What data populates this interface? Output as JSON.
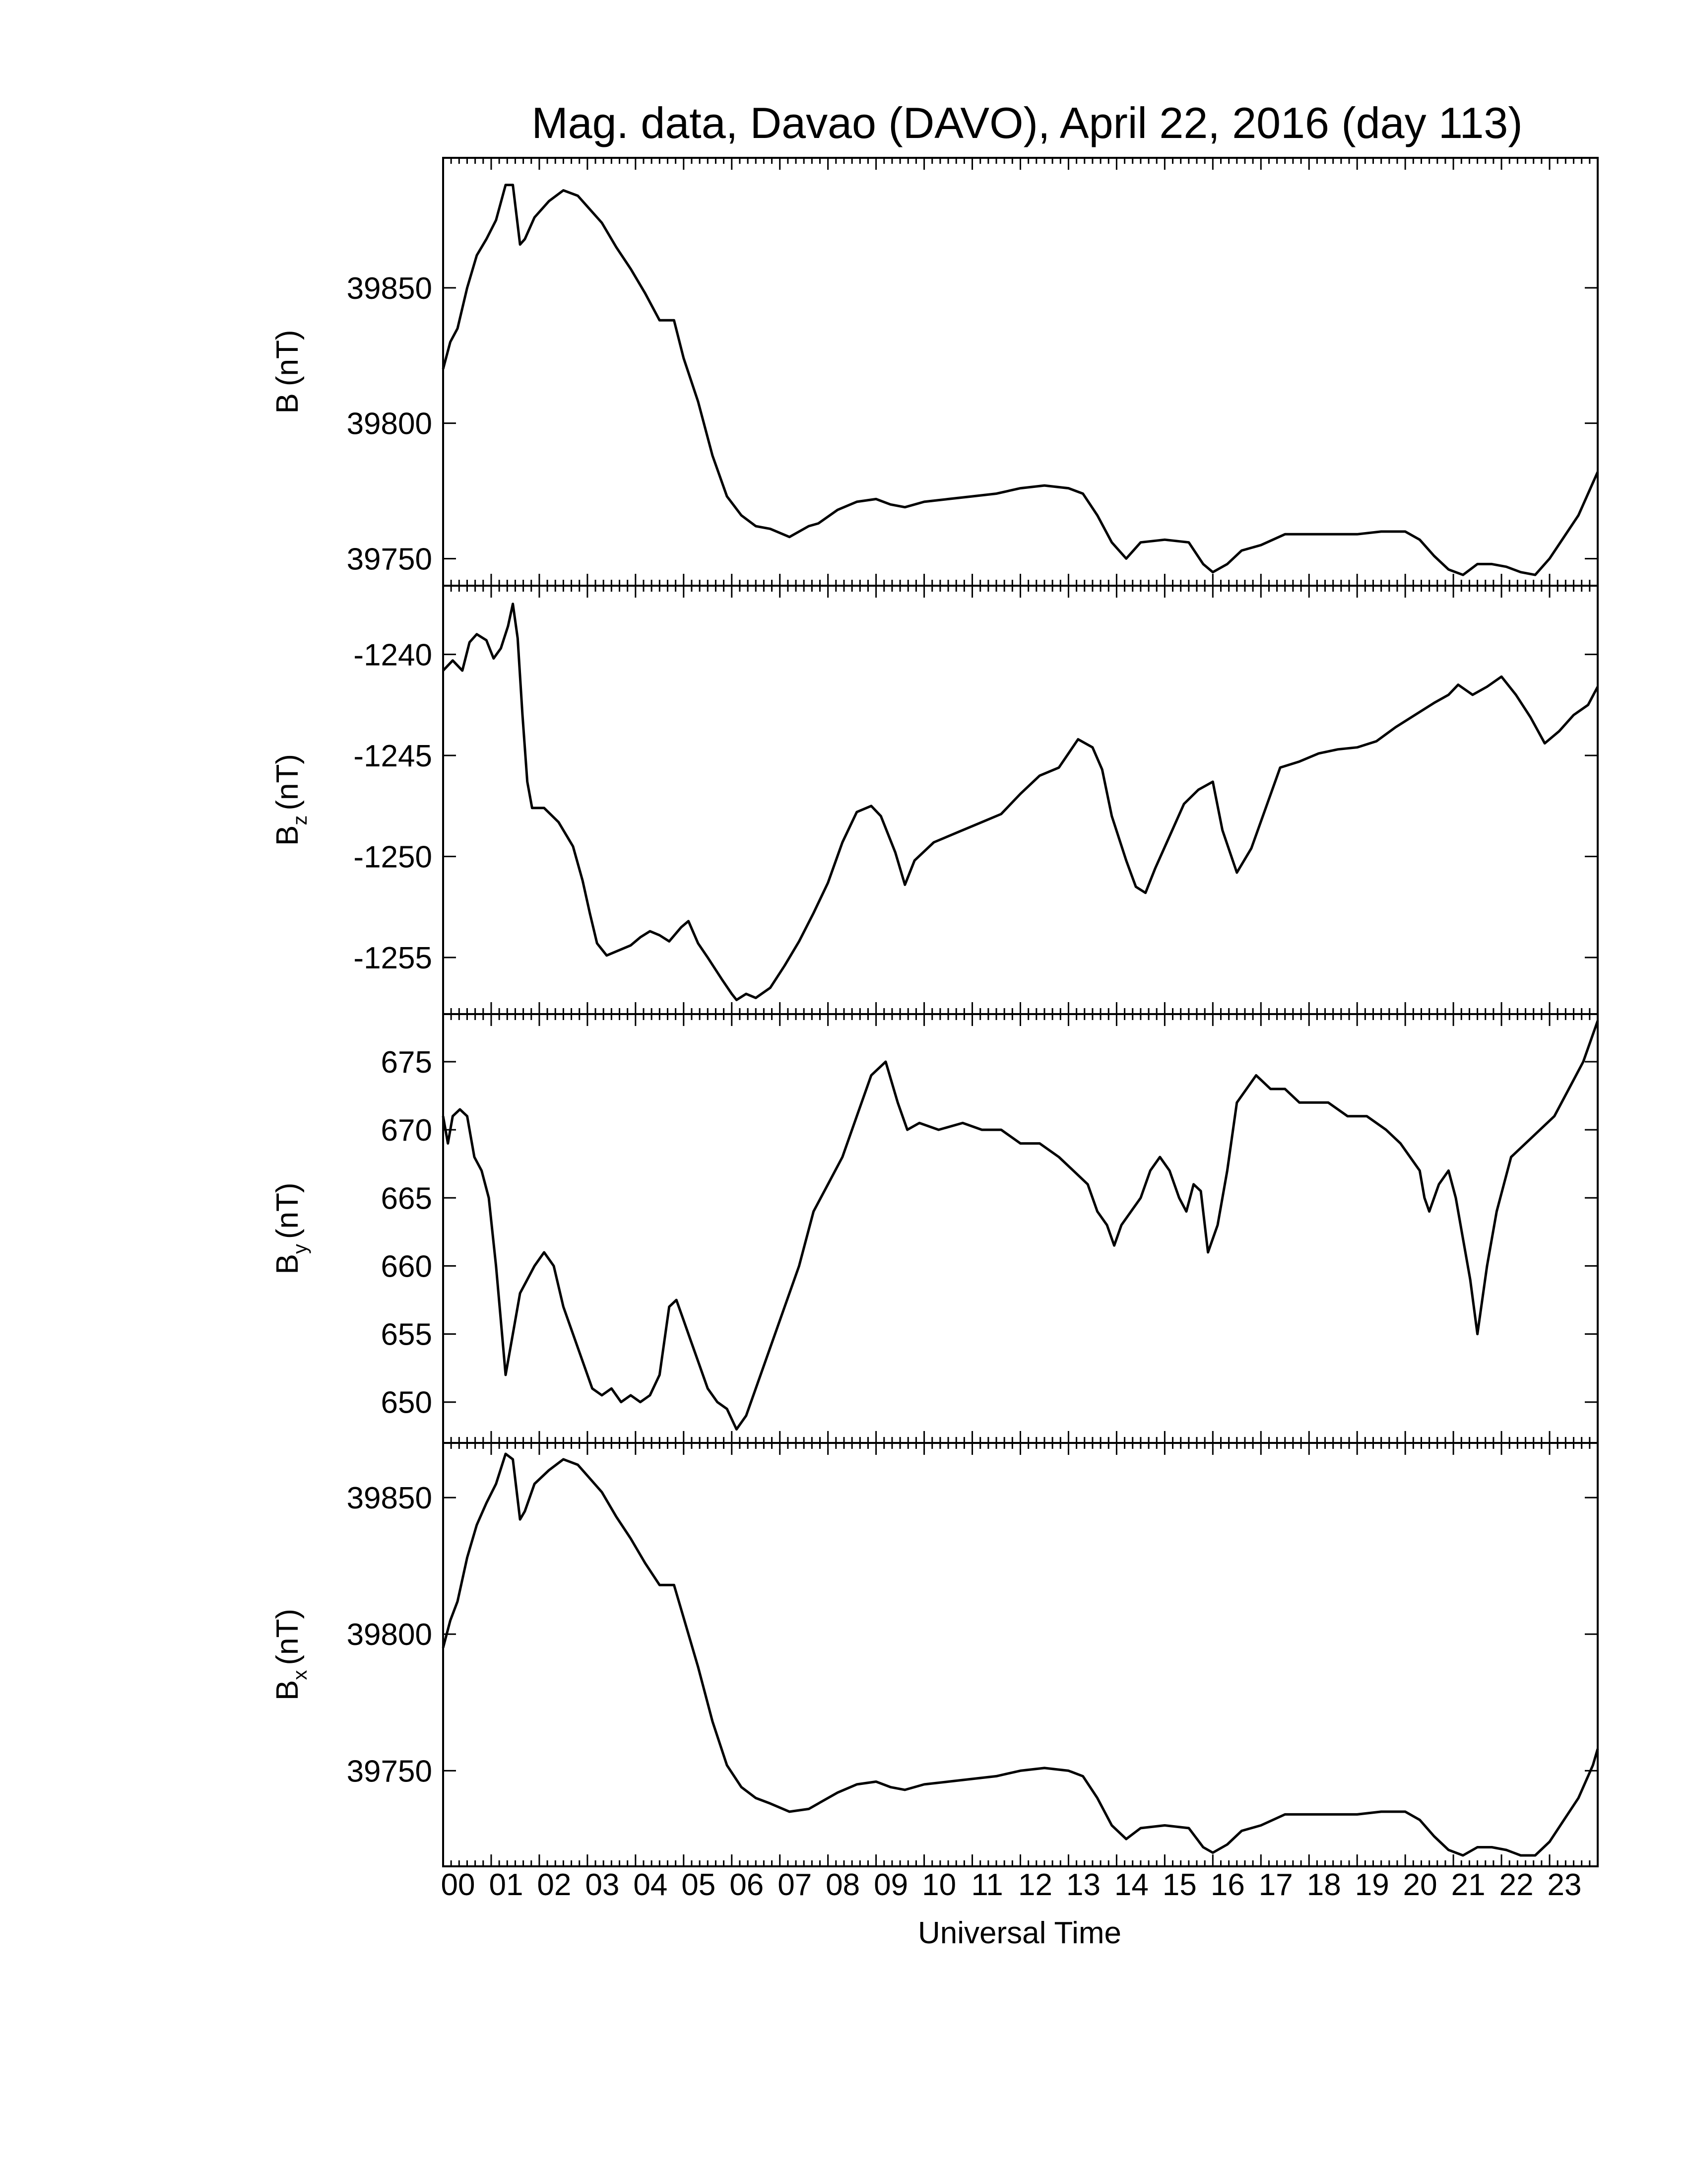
{
  "chart_data": {
    "type": "line",
    "title": "Mag. data, Davao (DAVO), April 22, 2016 (day 113)",
    "xlabel": "Universal Time",
    "x_ticks": [
      "00",
      "01",
      "02",
      "03",
      "04",
      "05",
      "06",
      "07",
      "08",
      "09",
      "10",
      "11",
      "12",
      "13",
      "14",
      "15",
      "16",
      "17",
      "18",
      "19",
      "20",
      "21",
      "22",
      "23"
    ],
    "xlim": [
      0,
      24
    ],
    "panels": [
      {
        "ylabel_main": "B",
        "ylabel_sub": "",
        "ylabel_unit": "(nT)",
        "ylim": [
          39740,
          39898
        ],
        "yticks": [
          39750,
          39800,
          39850
        ],
        "series": [
          {
            "x": [
              0,
              0.15,
              0.3,
              0.5,
              0.7,
              0.9,
              1.1,
              1.3,
              1.45,
              1.6,
              1.7,
              1.9,
              2.2,
              2.5,
              2.8,
              3.0,
              3.3,
              3.6,
              3.9,
              4.2,
              4.5,
              4.8,
              5.0,
              5.3,
              5.6,
              5.9,
              6.2,
              6.5,
              6.8,
              7.2,
              7.6,
              7.8,
              8.2,
              8.6,
              9.0,
              9.3,
              9.6,
              10.0,
              10.5,
              11.0,
              11.5,
              12.0,
              12.5,
              13.0,
              13.3,
              13.6,
              13.9,
              14.2,
              14.5,
              15.0,
              15.5,
              15.8,
              16.0,
              16.3,
              16.6,
              17.0,
              17.5,
              18.0,
              18.5,
              19.0,
              19.5,
              20.0,
              20.3,
              20.6,
              20.9,
              21.2,
              21.5,
              21.8,
              22.1,
              22.4,
              22.7,
              23.0,
              23.3,
              23.6,
              23.9,
              24.0
            ],
            "y": [
              39820,
              39830,
              39835,
              39850,
              39862,
              39868,
              39875,
              39888,
              39888,
              39866,
              39868,
              39876,
              39882,
              39886,
              39884,
              39880,
              39874,
              39865,
              39857,
              39848,
              39838,
              39838,
              39824,
              39808,
              39788,
              39773,
              39766,
              39762,
              39761,
              39758,
              39762,
              39763,
              39768,
              39771,
              39772,
              39770,
              39769,
              39771,
              39772,
              39773,
              39774,
              39776,
              39777,
              39776,
              39774,
              39766,
              39756,
              39750,
              39756,
              39757,
              39756,
              39748,
              39745,
              39748,
              39753,
              39755,
              39759,
              39759,
              39759,
              39759,
              39760,
              39760,
              39757,
              39751,
              39746,
              39744,
              39748,
              39748,
              39747,
              39745,
              39744,
              39750,
              39758,
              39766,
              39778,
              39782
            ]
          }
        ]
      },
      {
        "ylabel_main": "B",
        "ylabel_sub": "z",
        "ylabel_unit": "(nT)",
        "ylim": [
          -1257.8,
          -1236.6
        ],
        "yticks": [
          -1240,
          -1245,
          -1250,
          -1255
        ],
        "series": [
          {
            "x": [
              0,
              0.2,
              0.4,
              0.55,
              0.7,
              0.9,
              1.05,
              1.2,
              1.35,
              1.45,
              1.55,
              1.65,
              1.75,
              1.85,
              2.1,
              2.4,
              2.7,
              2.9,
              3.05,
              3.2,
              3.4,
              3.6,
              3.9,
              4.1,
              4.3,
              4.5,
              4.7,
              4.95,
              5.1,
              5.3,
              5.5,
              5.8,
              6.0,
              6.1,
              6.3,
              6.5,
              6.8,
              7.1,
              7.4,
              7.7,
              8.0,
              8.3,
              8.6,
              8.9,
              9.1,
              9.4,
              9.6,
              9.8,
              10.2,
              10.7,
              11.2,
              11.6,
              12.0,
              12.4,
              12.8,
              13.2,
              13.5,
              13.7,
              13.9,
              14.2,
              14.4,
              14.6,
              14.8,
              15.1,
              15.4,
              15.7,
              16.0,
              16.2,
              16.5,
              16.8,
              17.1,
              17.4,
              17.8,
              18.2,
              18.6,
              19.0,
              19.4,
              19.8,
              20.2,
              20.6,
              20.9,
              21.1,
              21.4,
              21.7,
              22.0,
              22.3,
              22.6,
              22.9,
              23.2,
              23.5,
              23.8,
              24.0
            ],
            "y": [
              -1240.8,
              -1240.3,
              -1240.8,
              -1239.4,
              -1239.0,
              -1239.3,
              -1240.2,
              -1239.7,
              -1238.6,
              -1237.5,
              -1239.2,
              -1243.0,
              -1246.3,
              -1247.6,
              -1247.6,
              -1248.3,
              -1249.5,
              -1251.2,
              -1252.8,
              -1254.3,
              -1254.9,
              -1254.7,
              -1254.4,
              -1254.0,
              -1253.7,
              -1253.9,
              -1254.2,
              -1253.5,
              -1253.2,
              -1254.3,
              -1255.0,
              -1256.1,
              -1256.8,
              -1257.1,
              -1256.8,
              -1257.0,
              -1256.5,
              -1255.4,
              -1254.2,
              -1252.8,
              -1251.3,
              -1249.3,
              -1247.8,
              -1247.5,
              -1248.0,
              -1249.8,
              -1251.4,
              -1250.2,
              -1249.3,
              -1248.8,
              -1248.3,
              -1247.9,
              -1246.9,
              -1246.0,
              -1245.6,
              -1244.2,
              -1244.6,
              -1245.7,
              -1248.0,
              -1250.2,
              -1251.5,
              -1251.8,
              -1250.6,
              -1249.0,
              -1247.4,
              -1246.7,
              -1246.3,
              -1248.7,
              -1250.8,
              -1249.6,
              -1247.6,
              -1245.6,
              -1245.3,
              -1244.9,
              -1244.7,
              -1244.6,
              -1244.3,
              -1243.6,
              -1243.0,
              -1242.4,
              -1242.0,
              -1241.5,
              -1242.0,
              -1241.6,
              -1241.1,
              -1242.0,
              -1243.1,
              -1244.4,
              -1243.8,
              -1243.0,
              -1242.5,
              -1241.6
            ]
          }
        ]
      },
      {
        "ylabel_main": "B",
        "ylabel_sub": "y",
        "ylabel_unit": "(nT)",
        "ylim": [
          647,
          678.5
        ],
        "yticks": [
          650,
          655,
          660,
          665,
          670,
          675
        ],
        "series": [
          {
            "x": [
              0,
              0.1,
              0.2,
              0.35,
              0.5,
              0.65,
              0.8,
              0.95,
              1.1,
              1.2,
              1.3,
              1.45,
              1.6,
              1.75,
              1.9,
              2.1,
              2.3,
              2.5,
              2.7,
              2.9,
              3.1,
              3.3,
              3.5,
              3.7,
              3.9,
              4.1,
              4.3,
              4.5,
              4.7,
              4.85,
              5.0,
              5.15,
              5.3,
              5.5,
              5.7,
              5.9,
              6.1,
              6.3,
              6.5,
              6.7,
              6.9,
              7.1,
              7.4,
              7.7,
              8.0,
              8.3,
              8.6,
              8.9,
              9.2,
              9.45,
              9.65,
              9.9,
              10.3,
              10.8,
              11.2,
              11.6,
              12.0,
              12.4,
              12.8,
              13.1,
              13.4,
              13.6,
              13.8,
              13.95,
              14.1,
              14.3,
              14.5,
              14.7,
              14.9,
              15.1,
              15.3,
              15.45,
              15.6,
              15.75,
              15.9,
              16.1,
              16.3,
              16.5,
              16.7,
              16.9,
              17.2,
              17.5,
              17.8,
              18.1,
              18.4,
              18.8,
              19.2,
              19.6,
              19.9,
              20.1,
              20.3,
              20.4,
              20.5,
              20.7,
              20.9,
              21.05,
              21.2,
              21.35,
              21.5,
              21.7,
              21.9,
              22.2,
              22.5,
              22.8,
              23.1,
              23.4,
              23.7,
              23.9,
              24.0
            ],
            "y": [
              671,
              669,
              671,
              671.5,
              671,
              668,
              667,
              665,
              660,
              656,
              652,
              655,
              658,
              659,
              660,
              661,
              660,
              657,
              655,
              653,
              651,
              650.5,
              651,
              650,
              650.5,
              650,
              650.5,
              652,
              657,
              657.5,
              656,
              654.5,
              653,
              651,
              650,
              649.5,
              648,
              649,
              651,
              653,
              655,
              657,
              660,
              664,
              666,
              668,
              671,
              674,
              675,
              672,
              670,
              670.5,
              670,
              670.5,
              670,
              670,
              669,
              669,
              668,
              667,
              666,
              664,
              663,
              661.5,
              663,
              664,
              665,
              667,
              668,
              667,
              665,
              664,
              666,
              665.5,
              661,
              663,
              667,
              672,
              673,
              674,
              673,
              673,
              672,
              672,
              672,
              671,
              671,
              670,
              669,
              668,
              667,
              665,
              664,
              666,
              667,
              665,
              662,
              659,
              655,
              660,
              664,
              668,
              669,
              670,
              671,
              673,
              675,
              677,
              678
            ]
          }
        ]
      },
      {
        "ylabel_main": "B",
        "ylabel_sub": "x",
        "ylabel_unit": "(nT)",
        "ylim": [
          39715,
          39870
        ],
        "yticks": [
          39750,
          39800,
          39850
        ],
        "series": [
          {
            "x": [
              0,
              0.15,
              0.3,
              0.5,
              0.7,
              0.9,
              1.1,
              1.3,
              1.45,
              1.6,
              1.7,
              1.9,
              2.2,
              2.5,
              2.8,
              3.0,
              3.3,
              3.6,
              3.9,
              4.2,
              4.5,
              4.8,
              5.0,
              5.3,
              5.6,
              5.9,
              6.2,
              6.5,
              6.8,
              7.2,
              7.6,
              7.8,
              8.2,
              8.6,
              9.0,
              9.3,
              9.6,
              10.0,
              10.5,
              11.0,
              11.5,
              12.0,
              12.5,
              13.0,
              13.3,
              13.6,
              13.9,
              14.2,
              14.5,
              15.0,
              15.5,
              15.8,
              16.0,
              16.3,
              16.6,
              17.0,
              17.5,
              18.0,
              18.5,
              19.0,
              19.5,
              20.0,
              20.3,
              20.6,
              20.9,
              21.2,
              21.5,
              21.8,
              22.1,
              22.4,
              22.7,
              23.0,
              23.3,
              23.6,
              23.9,
              24.0
            ],
            "y": [
              39795,
              39805,
              39812,
              39828,
              39840,
              39848,
              39855,
              39866,
              39864,
              39842,
              39845,
              39855,
              39860,
              39864,
              39862,
              39858,
              39852,
              39843,
              39835,
              39826,
              39818,
              39818,
              39806,
              39788,
              39768,
              39752,
              39744,
              39740,
              39738,
              39735,
              39736,
              39738,
              39742,
              39745,
              39746,
              39744,
              39743,
              39745,
              39746,
              39747,
              39748,
              39750,
              39751,
              39750,
              39748,
              39740,
              39730,
              39725,
              39729,
              39730,
              39729,
              39722,
              39720,
              39723,
              39728,
              39730,
              39734,
              39734,
              39734,
              39734,
              39735,
              39735,
              39732,
              39726,
              39721,
              39719,
              39722,
              39722,
              39721,
              39719,
              39719,
              39724,
              39732,
              39740,
              39752,
              39758
            ]
          }
        ]
      }
    ]
  }
}
